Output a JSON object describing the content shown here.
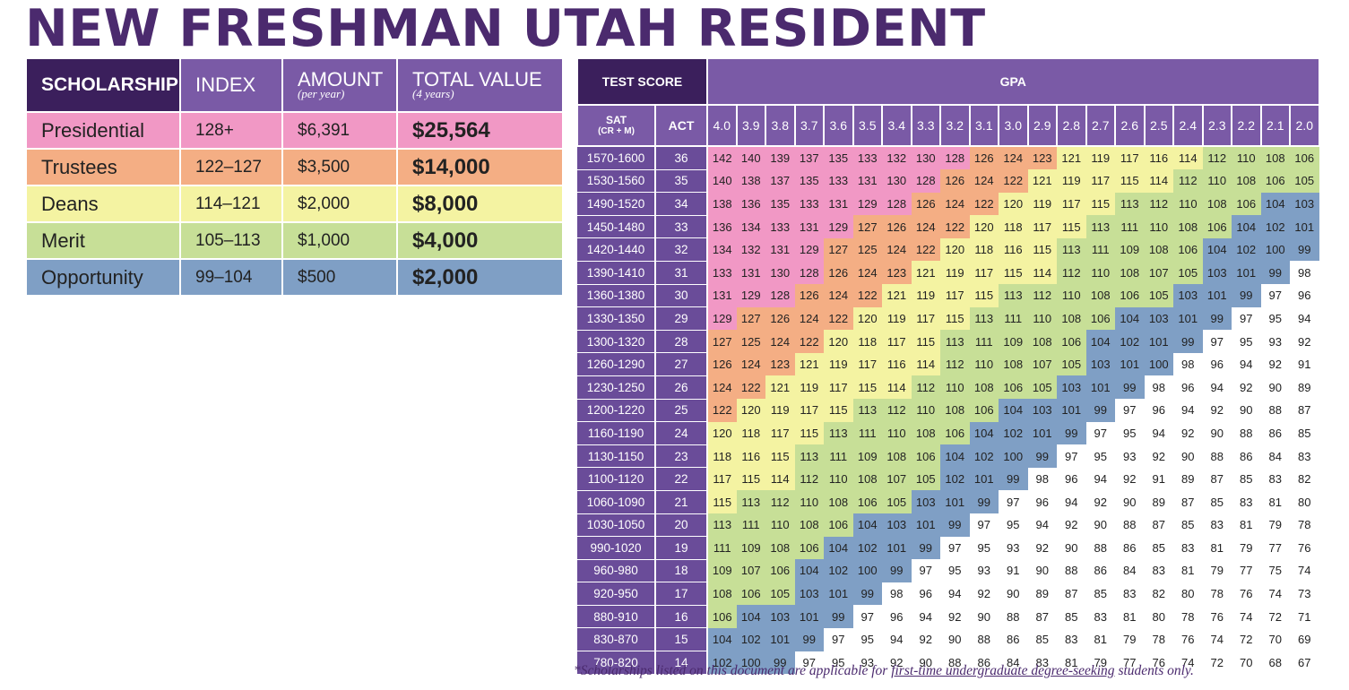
{
  "title": "NEW FRESHMAN UTAH RESIDENT",
  "scholarships": {
    "headers": {
      "scholarship": "SCHOLARSHIP",
      "index": "INDEX",
      "amount": "AMOUNT",
      "amount_sub": "(per year)",
      "total": "TOTAL VALUE",
      "total_sub": "(4 years)"
    },
    "rows": [
      {
        "name": "Presidential",
        "index": "128+",
        "amount": "$6,391",
        "total": "$25,564",
        "color": "#f198c5"
      },
      {
        "name": "Trustees",
        "index": "122–127",
        "amount": "$3,500",
        "total": "$14,000",
        "color": "#f4ae84"
      },
      {
        "name": "Deans",
        "index": "114–121",
        "amount": "$2,000",
        "total": "$8,000",
        "color": "#f4f3a2"
      },
      {
        "name": "Merit",
        "index": "105–113",
        "amount": "$1,000",
        "total": "$4,000",
        "color": "#c7df97"
      },
      {
        "name": "Opportunity",
        "index": "99–104",
        "amount": "$500",
        "total": "$2,000",
        "color": "#7f9fc5"
      }
    ]
  },
  "grid": {
    "test_score_label": "TEST SCORE",
    "gpa_label": "GPA",
    "sat_label": "SAT",
    "sat_sub": "(CR + M)",
    "act_label": "ACT",
    "gpa_values": [
      "4.0",
      "3.9",
      "3.8",
      "3.7",
      "3.6",
      "3.5",
      "3.4",
      "3.3",
      "3.2",
      "3.1",
      "3.0",
      "2.9",
      "2.8",
      "2.7",
      "2.6",
      "2.5",
      "2.4",
      "2.3",
      "2.2",
      "2.1",
      "2.0"
    ],
    "rows": [
      {
        "sat": "1570-1600",
        "act": "36",
        "values": [
          142,
          140,
          139,
          137,
          135,
          133,
          132,
          130,
          128,
          126,
          124,
          123,
          121,
          119,
          117,
          116,
          114,
          112,
          110,
          108,
          106
        ]
      },
      {
        "sat": "1530-1560",
        "act": "35",
        "values": [
          140,
          138,
          137,
          135,
          133,
          131,
          130,
          128,
          126,
          124,
          122,
          121,
          119,
          117,
          115,
          114,
          112,
          110,
          108,
          106,
          105
        ]
      },
      {
        "sat": "1490-1520",
        "act": "34",
        "values": [
          138,
          136,
          135,
          133,
          131,
          129,
          128,
          126,
          124,
          122,
          120,
          119,
          117,
          115,
          113,
          112,
          110,
          108,
          106,
          104,
          103
        ]
      },
      {
        "sat": "1450-1480",
        "act": "33",
        "values": [
          136,
          134,
          133,
          131,
          129,
          127,
          126,
          124,
          122,
          120,
          118,
          117,
          115,
          113,
          111,
          110,
          108,
          106,
          104,
          102,
          101
        ]
      },
      {
        "sat": "1420-1440",
        "act": "32",
        "values": [
          134,
          132,
          131,
          129,
          127,
          125,
          124,
          122,
          120,
          118,
          116,
          115,
          113,
          111,
          109,
          108,
          106,
          104,
          102,
          100,
          99
        ]
      },
      {
        "sat": "1390-1410",
        "act": "31",
        "values": [
          133,
          131,
          130,
          128,
          126,
          124,
          123,
          121,
          119,
          117,
          115,
          114,
          112,
          110,
          108,
          107,
          105,
          103,
          101,
          99,
          98
        ]
      },
      {
        "sat": "1360-1380",
        "act": "30",
        "values": [
          131,
          129,
          128,
          126,
          124,
          122,
          121,
          119,
          117,
          115,
          113,
          112,
          110,
          108,
          106,
          105,
          103,
          101,
          99,
          97,
          96
        ]
      },
      {
        "sat": "1330-1350",
        "act": "29",
        "values": [
          129,
          127,
          126,
          124,
          122,
          120,
          119,
          117,
          115,
          113,
          111,
          110,
          108,
          106,
          104,
          103,
          101,
          99,
          97,
          95,
          94
        ]
      },
      {
        "sat": "1300-1320",
        "act": "28",
        "values": [
          127,
          125,
          124,
          122,
          120,
          118,
          117,
          115,
          113,
          111,
          109,
          108,
          106,
          104,
          102,
          101,
          99,
          97,
          95,
          93,
          92
        ]
      },
      {
        "sat": "1260-1290",
        "act": "27",
        "values": [
          126,
          124,
          123,
          121,
          119,
          117,
          116,
          114,
          112,
          110,
          108,
          107,
          105,
          103,
          101,
          100,
          98,
          96,
          94,
          92,
          91
        ]
      },
      {
        "sat": "1230-1250",
        "act": "26",
        "values": [
          124,
          122,
          121,
          119,
          117,
          115,
          114,
          112,
          110,
          108,
          106,
          105,
          103,
          101,
          99,
          98,
          96,
          94,
          92,
          90,
          89
        ]
      },
      {
        "sat": "1200-1220",
        "act": "25",
        "values": [
          122,
          120,
          119,
          117,
          115,
          113,
          112,
          110,
          108,
          106,
          104,
          103,
          101,
          99,
          97,
          96,
          94,
          92,
          90,
          88,
          87
        ]
      },
      {
        "sat": "1160-1190",
        "act": "24",
        "values": [
          120,
          118,
          117,
          115,
          113,
          111,
          110,
          108,
          106,
          104,
          102,
          101,
          99,
          97,
          95,
          94,
          92,
          90,
          88,
          86,
          85
        ]
      },
      {
        "sat": "1130-1150",
        "act": "23",
        "values": [
          118,
          116,
          115,
          113,
          111,
          109,
          108,
          106,
          104,
          102,
          100,
          99,
          97,
          95,
          93,
          92,
          90,
          88,
          86,
          84,
          83
        ]
      },
      {
        "sat": "1100-1120",
        "act": "22",
        "values": [
          117,
          115,
          114,
          112,
          110,
          108,
          107,
          105,
          102,
          101,
          99,
          98,
          96,
          94,
          92,
          91,
          89,
          87,
          85,
          83,
          82
        ]
      },
      {
        "sat": "1060-1090",
        "act": "21",
        "values": [
          115,
          113,
          112,
          110,
          108,
          106,
          105,
          103,
          101,
          99,
          97,
          96,
          94,
          92,
          90,
          89,
          87,
          85,
          83,
          81,
          80
        ]
      },
      {
        "sat": "1030-1050",
        "act": "20",
        "values": [
          113,
          111,
          110,
          108,
          106,
          104,
          103,
          101,
          99,
          97,
          95,
          94,
          92,
          90,
          88,
          87,
          85,
          83,
          81,
          79,
          78
        ]
      },
      {
        "sat": "990-1020",
        "act": "19",
        "values": [
          111,
          109,
          108,
          106,
          104,
          102,
          101,
          99,
          97,
          95,
          93,
          92,
          90,
          88,
          86,
          85,
          83,
          81,
          79,
          77,
          76
        ]
      },
      {
        "sat": "960-980",
        "act": "18",
        "values": [
          109,
          107,
          106,
          104,
          102,
          100,
          99,
          97,
          95,
          93,
          91,
          90,
          88,
          86,
          84,
          83,
          81,
          79,
          77,
          75,
          74
        ]
      },
      {
        "sat": "920-950",
        "act": "17",
        "values": [
          108,
          106,
          105,
          103,
          101,
          99,
          98,
          96,
          94,
          92,
          90,
          89,
          87,
          85,
          83,
          82,
          80,
          78,
          76,
          74,
          73
        ]
      },
      {
        "sat": "880-910",
        "act": "16",
        "values": [
          106,
          104,
          103,
          101,
          99,
          97,
          96,
          94,
          92,
          90,
          88,
          87,
          85,
          83,
          81,
          80,
          78,
          76,
          74,
          72,
          71
        ]
      },
      {
        "sat": "830-870",
        "act": "15",
        "values": [
          104,
          102,
          101,
          99,
          97,
          95,
          94,
          92,
          90,
          88,
          86,
          85,
          83,
          81,
          79,
          78,
          76,
          74,
          72,
          70,
          69
        ]
      },
      {
        "sat": "780-820",
        "act": "14",
        "values": [
          102,
          100,
          99,
          97,
          95,
          93,
          92,
          90,
          88,
          86,
          84,
          83,
          81,
          79,
          77,
          76,
          74,
          72,
          70,
          68,
          67
        ]
      }
    ]
  },
  "footnote": {
    "before": "*Scholarships listed on this document are applicable for ",
    "underlined": "first-time undergraduate degree-seeking",
    "after": " students only."
  }
}
